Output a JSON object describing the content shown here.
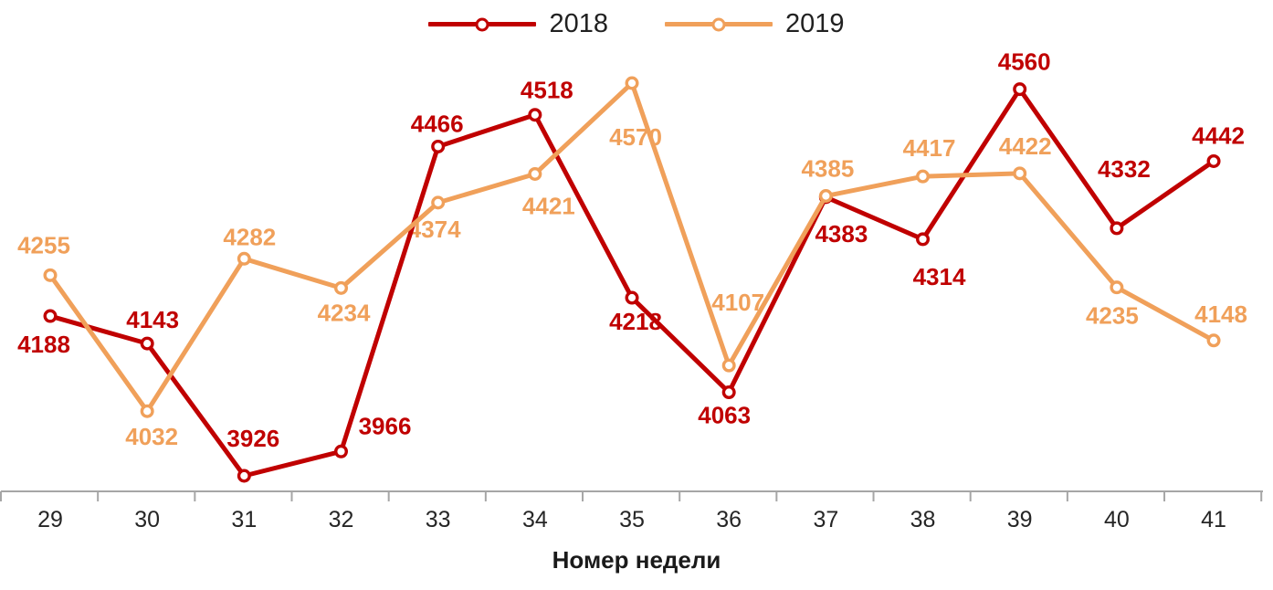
{
  "chart_data": {
    "type": "line",
    "title": "",
    "xlabel": "Номер недели",
    "ylabel": "",
    "x_categories": [
      29,
      30,
      31,
      32,
      33,
      34,
      35,
      36,
      37,
      38,
      39,
      40,
      41
    ],
    "ylim": [
      3926,
      4570
    ],
    "grid": false,
    "legend_position": "top",
    "axis_color": "#A6A6A6",
    "tick_label_color": "#262626",
    "marker": "open-circle",
    "series": [
      {
        "name": "2018",
        "color": "#C00000",
        "values": [
          4188,
          4143,
          3926,
          3966,
          4466,
          4518,
          4218,
          4063,
          4383,
          4314,
          4560,
          4332,
          4442
        ],
        "label_offsets": [
          [
            -7,
            31
          ],
          [
            6,
            -26
          ],
          [
            10,
            -41
          ],
          [
            48,
            -28
          ],
          [
            -1,
            -25
          ],
          [
            13,
            -27
          ],
          [
            4,
            26
          ],
          [
            -5,
            25
          ],
          [
            17,
            40
          ],
          [
            18,
            41
          ],
          [
            5,
            -30
          ],
          [
            8,
            -65
          ],
          [
            5,
            -28
          ]
        ]
      },
      {
        "name": "2019",
        "color": "#F0A05A",
        "values": [
          4255,
          4032,
          4282,
          4234,
          4374,
          4421,
          4570,
          4107,
          4385,
          4417,
          4422,
          4235,
          4148
        ],
        "label_offsets": [
          [
            -7,
            -33
          ],
          [
            5,
            28
          ],
          [
            6,
            -24
          ],
          [
            3,
            27
          ],
          [
            -4,
            29
          ],
          [
            15,
            35
          ],
          [
            4,
            59
          ],
          [
            10,
            -69
          ],
          [
            2,
            -30
          ],
          [
            7,
            -31
          ],
          [
            6,
            -30
          ],
          [
            -5,
            31
          ],
          [
            8,
            -29
          ]
        ]
      }
    ]
  }
}
